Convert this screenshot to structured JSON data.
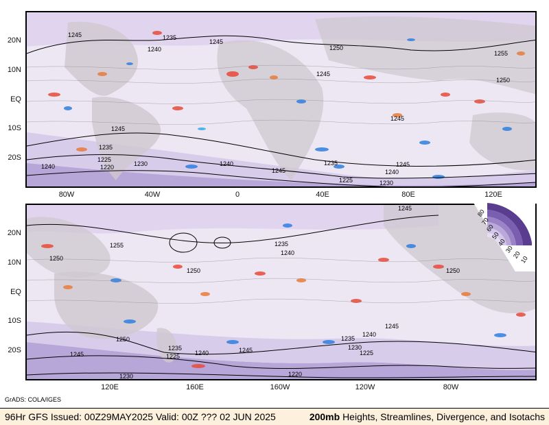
{
  "colors": {
    "ocean_fill": "#ece7f3",
    "land_fill": "#cfc8cf",
    "isotach_light": "#e3d8f0",
    "isotach_mid": "#b7a6d8",
    "isotach_dark": "#6a4fa0",
    "divergence_orange": "#e87b3a",
    "divergence_red": "#e84a3a",
    "convergence_blue": "#2f7fe0",
    "convergence_light_blue": "#3aa8e8",
    "footer_bg": "#fdf0dc"
  },
  "top_panel": {
    "lat_labels": [
      "20N",
      "10N",
      "EQ",
      "10S",
      "20S"
    ],
    "lon_labels": [
      "80W",
      "40W",
      "0",
      "40E",
      "80E",
      "120E"
    ],
    "contour_labels": [
      "1245",
      "1235",
      "1240",
      "1245",
      "1250",
      "1245",
      "1255",
      "1250",
      "1245",
      "1245",
      "1235",
      "1225",
      "1220",
      "1230",
      "1240",
      "1240",
      "1245",
      "1235",
      "1225",
      "1230",
      "1240",
      "1245"
    ]
  },
  "bottom_panel": {
    "lat_labels": [
      "20N",
      "10N",
      "EQ",
      "10S",
      "20S"
    ],
    "lon_labels": [
      "120E",
      "160E",
      "160W",
      "120W",
      "80W"
    ],
    "contour_labels": [
      "1245",
      "1255",
      "1250",
      "1250",
      "1235",
      "1240",
      "1250",
      "1250",
      "1245",
      "1235",
      "1225",
      "1240",
      "1245",
      "1235",
      "1230",
      "1225",
      "1240",
      "1245",
      "1230",
      "1220"
    ]
  },
  "legend": {
    "ticks": [
      "80",
      "70",
      "60",
      "50",
      "40",
      "30",
      "20",
      "10"
    ]
  },
  "credit": "GrADS: COLA/IGES",
  "footer": {
    "left": "96Hr GFS Issued: 00Z29MAY2025 Valid: 00Z ??? 02 JUN 2025",
    "level": "200mb",
    "title": "Heights, Streamlines, Divergence, and Isotachs"
  }
}
